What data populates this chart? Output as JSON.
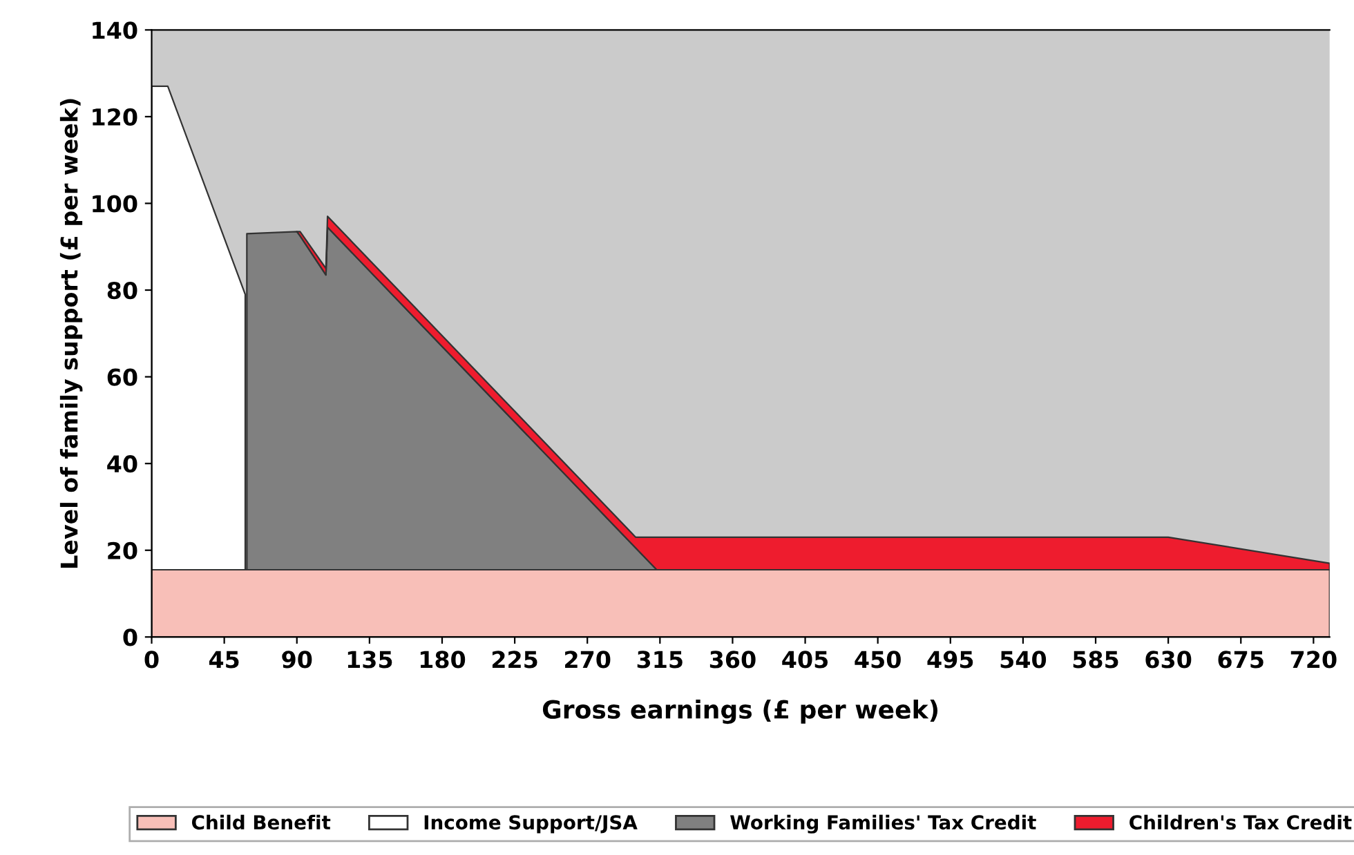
{
  "chart_data": {
    "type": "area",
    "stacked": true,
    "xlabel": "Gross earnings (£ per week)",
    "ylabel": "Level of family support (£ per week)",
    "x": [
      0,
      10,
      58,
      59,
      90,
      92,
      108,
      109,
      300,
      313,
      630,
      730
    ],
    "series": [
      {
        "name": "Child Benefit",
        "color": "#f8bfb8",
        "values": [
          15.5,
          15.5,
          15.5,
          15.5,
          15.5,
          15.5,
          15.5,
          15.5,
          15.5,
          15.5,
          15.5,
          15.5
        ]
      },
      {
        "name": "Income Support/JSA",
        "color": "#ffffff",
        "values": [
          111.5,
          111.5,
          63.5,
          null,
          null,
          null,
          null,
          null,
          null,
          null,
          null,
          null
        ]
      },
      {
        "name": "Working Families' Tax Credit",
        "color": "#808080",
        "values": [
          null,
          null,
          null,
          77.5,
          78,
          77,
          68,
          79,
          5,
          0,
          null,
          null
        ]
      },
      {
        "name": "Children's Tax Credit",
        "color": "#ee1c2e",
        "values": [
          null,
          null,
          null,
          null,
          0,
          1,
          1.5,
          2.5,
          2.5,
          7.5,
          7.5,
          1.5
        ]
      }
    ],
    "xlim": [
      0,
      730
    ],
    "ylim": [
      0,
      140
    ],
    "xticks": [
      0,
      45,
      90,
      135,
      180,
      225,
      270,
      315,
      360,
      405,
      450,
      495,
      540,
      585,
      630,
      675,
      720
    ],
    "yticks": [
      0,
      20,
      40,
      60,
      80,
      100,
      120,
      140
    ],
    "grid": false,
    "legend": "bottom"
  }
}
